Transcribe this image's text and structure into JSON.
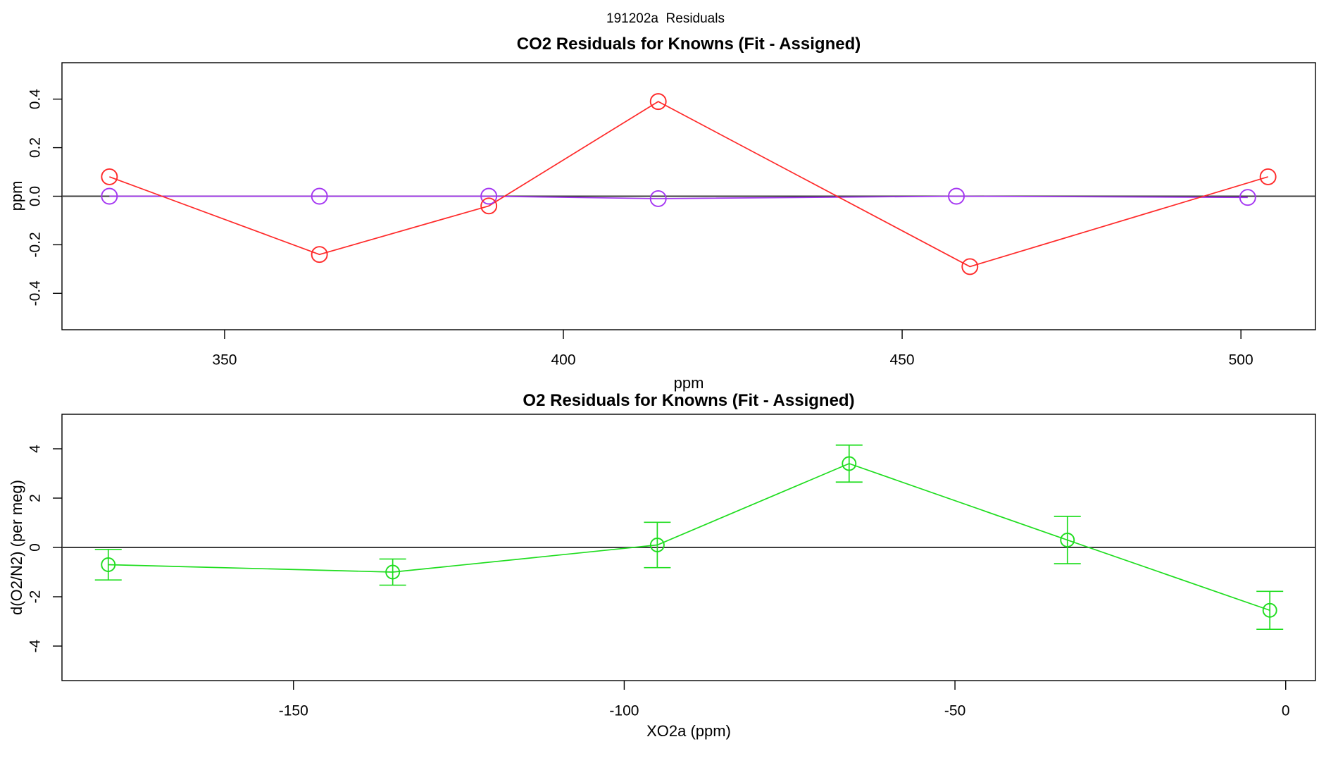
{
  "figure": {
    "main_title": "191202a  Residuals",
    "background": "#ffffff",
    "box_color": "#000000",
    "zero_line_color": "#3d3d3d",
    "tick_label_color": "#000000"
  },
  "chart_data": [
    {
      "type": "line",
      "title": "CO2 Residuals for Knowns (Fit - Assigned)",
      "xlabel": "ppm",
      "ylabel": "ppm",
      "xlim": [
        326,
        511
      ],
      "ylim": [
        -0.55,
        0.55
      ],
      "xticks": [
        350,
        400,
        450,
        500
      ],
      "xtick_labels": [
        "350",
        "400",
        "450",
        "500"
      ],
      "yticks": [
        -0.4,
        -0.2,
        0,
        0.2,
        0.4
      ],
      "ytick_labels": [
        "-0.4",
        "-0.2",
        "0.0",
        "0.2",
        "0.4"
      ],
      "zero_line": true,
      "grid": false,
      "legend_position": "none",
      "series": [
        {
          "name": "co2-residual-knowns-red",
          "color": "#ff2a2a",
          "marker": "open-circle",
          "marker_radius": 11,
          "x": [
            333,
            364,
            389,
            414,
            460,
            504
          ],
          "y": [
            0.08,
            -0.24,
            -0.04,
            0.39,
            -0.29,
            0.08
          ]
        },
        {
          "name": "co2-residual-fit-purple",
          "color": "#a435f2",
          "marker": "open-circle",
          "marker_radius": 11,
          "x": [
            333,
            364,
            389,
            414,
            458,
            501
          ],
          "y": [
            0,
            0,
            0,
            -0.01,
            0,
            -0.005
          ]
        }
      ]
    },
    {
      "type": "line",
      "title": "O2 Residuals for Knowns (Fit - Assigned)",
      "xlabel": "XO2a (ppm)",
      "ylabel": "d(O2/N2) (per meg)",
      "xlim": [
        -185,
        4.5
      ],
      "ylim": [
        -5.4,
        5.4
      ],
      "xticks": [
        -150,
        -100,
        -50,
        0
      ],
      "xtick_labels": [
        "-150",
        "-100",
        "-50",
        "0"
      ],
      "yticks": [
        -4,
        -2,
        0,
        2,
        4
      ],
      "ytick_labels": [
        "-4",
        "-2",
        "0",
        "2",
        "4"
      ],
      "zero_line": true,
      "grid": false,
      "legend_position": "none",
      "series": [
        {
          "name": "o2-residual-knowns-green",
          "color": "#1fdd1f",
          "marker": "open-circle",
          "marker_radius": 9.5,
          "x": [
            -178,
            -135,
            -95,
            -66,
            -33,
            -2.4
          ],
          "y": [
            -0.7,
            -1.0,
            0.1,
            3.4,
            0.3,
            -2.55
          ],
          "yerr": [
            0.62,
            0.53,
            0.92,
            0.75,
            0.96,
            0.77
          ]
        }
      ]
    }
  ]
}
